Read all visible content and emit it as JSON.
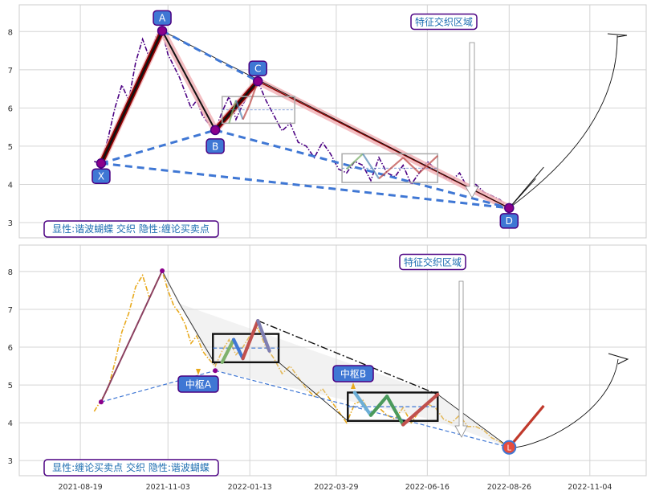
{
  "chart_data": [
    {
      "type": "line",
      "title": "",
      "xlabel": "",
      "ylabel": "",
      "ylim": [
        2.6,
        8.7
      ],
      "grid": true,
      "legend_box": "显性:谐波蝴蝶 交织 隐性:缠论买卖点",
      "annotation": "特征交织区域",
      "pattern_points": [
        {
          "label": "X",
          "date": "2021-09-06",
          "value": 4.55
        },
        {
          "label": "A",
          "date": "2021-10-29",
          "value": 8.02
        },
        {
          "label": "B",
          "date": "2021-12-14",
          "value": 5.42
        },
        {
          "label": "C",
          "date": "2022-01-20",
          "value": 6.7
        },
        {
          "label": "D",
          "date": "2022-08-26",
          "value": 3.38
        }
      ],
      "series": [
        {
          "x": [
            "2021-08-31",
            "2021-09-06",
            "2021-09-12",
            "2021-09-18",
            "2021-09-24",
            "2021-09-30",
            "2021-10-06",
            "2021-10-12",
            "2021-10-18",
            "2021-10-24",
            "2021-10-29",
            "2021-11-03",
            "2021-11-08",
            "2021-11-13",
            "2021-11-18",
            "2021-11-23",
            "2021-11-28",
            "2021-12-03",
            "2021-12-08",
            "2021-12-14",
            "2021-12-20",
            "2021-12-26",
            "2022-01-01",
            "2022-01-07",
            "2022-01-13",
            "2022-01-20",
            "2022-01-27",
            "2022-02-03",
            "2022-02-10",
            "2022-02-17",
            "2022-02-24",
            "2022-03-03",
            "2022-03-10",
            "2022-03-17",
            "2022-03-24",
            "2022-03-31",
            "2022-04-07",
            "2022-04-14",
            "2022-04-21",
            "2022-04-28",
            "2022-05-05",
            "2022-05-12",
            "2022-05-19",
            "2022-05-26",
            "2022-06-02",
            "2022-06-09",
            "2022-06-16",
            "2022-06-23",
            "2022-06-30",
            "2022-07-07",
            "2022-07-14",
            "2022-07-21",
            "2022-07-28",
            "2022-08-04",
            "2022-08-11",
            "2022-08-18",
            "2022-08-26"
          ],
          "values": [
            4.6,
            4.55,
            5.2,
            6.0,
            6.6,
            6.2,
            7.2,
            7.8,
            7.3,
            7.9,
            8.02,
            7.4,
            7.1,
            6.8,
            6.4,
            6.0,
            6.2,
            5.8,
            5.6,
            5.42,
            5.9,
            6.3,
            5.7,
            6.1,
            6.4,
            6.7,
            6.2,
            5.8,
            5.4,
            5.6,
            5.1,
            5.0,
            4.7,
            5.1,
            4.8,
            4.4,
            4.3,
            4.6,
            4.5,
            4.1,
            4.7,
            4.3,
            4.2,
            4.5,
            4.0,
            4.3,
            4.6,
            4.4,
            4.2,
            4.1,
            4.3,
            3.9,
            4.0,
            3.8,
            3.7,
            3.6,
            3.38
          ]
        }
      ]
    },
    {
      "type": "line",
      "title": "",
      "xlabel": "",
      "ylabel": "",
      "ylim": [
        2.6,
        8.7
      ],
      "grid": true,
      "legend_box": "显性:缠论买卖点 交织 隐性:谐波蝴蝶",
      "annotation": "特征交织区域",
      "zhongshu": [
        {
          "label": "中枢A",
          "start": "2021-12-12",
          "end": "2022-02-07",
          "low": 5.6,
          "high": 6.35
        },
        {
          "label": "中枢B",
          "start": "2022-04-08",
          "end": "2022-06-25",
          "low": 4.05,
          "high": 4.8
        }
      ],
      "x_ticks": [
        "2021-08-19",
        "2021-11-03",
        "2022-01-13",
        "2022-03-29",
        "2022-06-16",
        "2022-08-26",
        "2022-11-04"
      ],
      "series": [
        {
          "x": [
            "2021-08-31",
            "2021-09-06",
            "2021-09-12",
            "2021-09-18",
            "2021-09-24",
            "2021-09-30",
            "2021-10-06",
            "2021-10-12",
            "2021-10-18",
            "2021-10-24",
            "2021-10-29",
            "2021-11-03",
            "2021-11-08",
            "2021-11-13",
            "2021-11-18",
            "2021-11-23",
            "2021-11-28",
            "2021-12-03",
            "2021-12-08",
            "2021-12-14",
            "2021-12-20",
            "2021-12-26",
            "2022-01-01",
            "2022-01-07",
            "2022-01-13",
            "2022-01-20",
            "2022-01-27",
            "2022-02-03",
            "2022-02-10",
            "2022-02-17",
            "2022-02-24",
            "2022-03-03",
            "2022-03-10",
            "2022-03-17",
            "2022-03-24",
            "2022-03-31",
            "2022-04-07",
            "2022-04-14",
            "2022-04-21",
            "2022-04-28",
            "2022-05-05",
            "2022-05-12",
            "2022-05-19",
            "2022-05-26",
            "2022-06-02",
            "2022-06-09",
            "2022-06-16",
            "2022-06-23",
            "2022-06-30",
            "2022-07-07",
            "2022-07-14",
            "2022-07-21",
            "2022-07-28",
            "2022-08-04",
            "2022-08-11",
            "2022-08-18",
            "2022-08-26"
          ],
          "values": [
            4.3,
            4.6,
            4.9,
            5.6,
            6.4,
            6.9,
            7.6,
            7.9,
            7.3,
            7.7,
            8.02,
            7.5,
            7.1,
            6.9,
            6.6,
            6.1,
            6.3,
            5.9,
            5.7,
            5.5,
            5.9,
            6.2,
            5.8,
            6.0,
            6.3,
            6.5,
            6.0,
            5.7,
            5.3,
            5.5,
            5.2,
            4.9,
            4.7,
            4.9,
            4.6,
            4.3,
            4.0,
            4.5,
            4.6,
            4.2,
            4.4,
            4.2,
            4.1,
            4.4,
            4.0,
            4.3,
            4.5,
            4.4,
            4.1,
            4.0,
            4.2,
            3.9,
            3.9,
            3.8,
            3.6,
            3.5,
            3.35
          ]
        }
      ]
    }
  ]
}
